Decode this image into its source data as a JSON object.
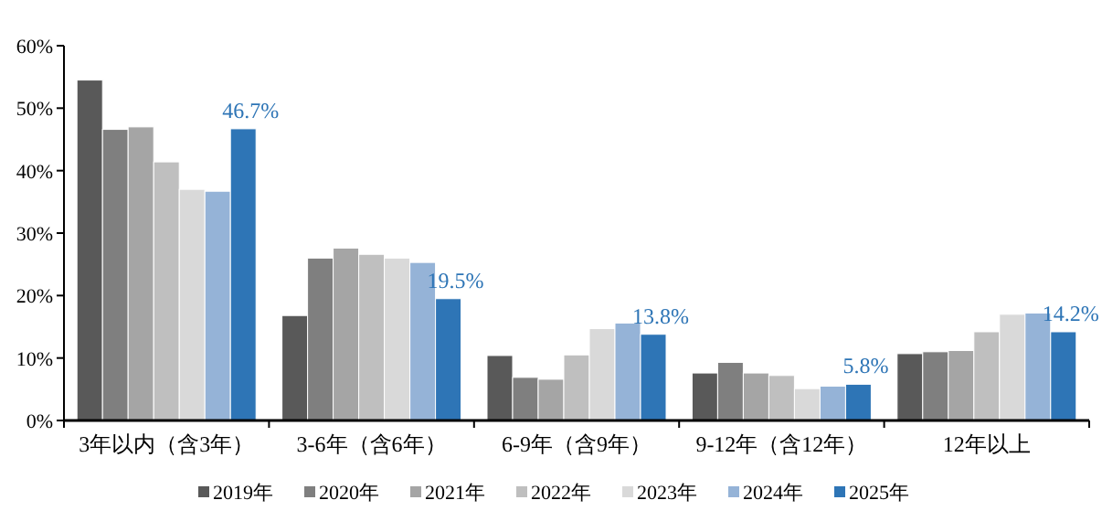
{
  "chart_data": {
    "type": "bar",
    "categories": [
      "3年以内（含3年）",
      "3-6年（含6年）",
      "6-9年（含9年）",
      "9-12年（含12年）",
      "12年以上"
    ],
    "series": [
      {
        "name": "2019年",
        "color": "#595959",
        "values": [
          54.5,
          16.8,
          10.4,
          7.6,
          10.7
        ]
      },
      {
        "name": "2020年",
        "color": "#7f7f7f",
        "values": [
          46.6,
          26.0,
          6.9,
          9.3,
          11.0
        ]
      },
      {
        "name": "2021年",
        "color": "#a5a5a5",
        "values": [
          47.0,
          27.6,
          6.6,
          7.6,
          11.2
        ]
      },
      {
        "name": "2022年",
        "color": "#bfbfbf",
        "values": [
          41.4,
          26.6,
          10.5,
          7.2,
          14.2
        ]
      },
      {
        "name": "2023年",
        "color": "#d9d9d9",
        "values": [
          37.0,
          26.0,
          14.7,
          5.1,
          17.0
        ]
      },
      {
        "name": "2024年",
        "color": "#95b3d7",
        "values": [
          36.7,
          25.3,
          15.6,
          5.5,
          17.2
        ]
      },
      {
        "name": "2025年",
        "color": "#2e75b6",
        "values": [
          46.7,
          19.5,
          13.8,
          5.8,
          14.2
        ],
        "value_labels": [
          "46.7%",
          "19.5%",
          "13.8%",
          "5.8%",
          "14.2%"
        ]
      }
    ],
    "ylim": [
      0,
      60
    ],
    "yticks": [
      {
        "value": 0,
        "label": "0%"
      },
      {
        "value": 10,
        "label": "10%"
      },
      {
        "value": 20,
        "label": "20%"
      },
      {
        "value": 30,
        "label": "30%"
      },
      {
        "value": 40,
        "label": "40%"
      },
      {
        "value": 50,
        "label": "50%"
      },
      {
        "value": 60,
        "label": "60%"
      }
    ],
    "legend": "bottom"
  }
}
